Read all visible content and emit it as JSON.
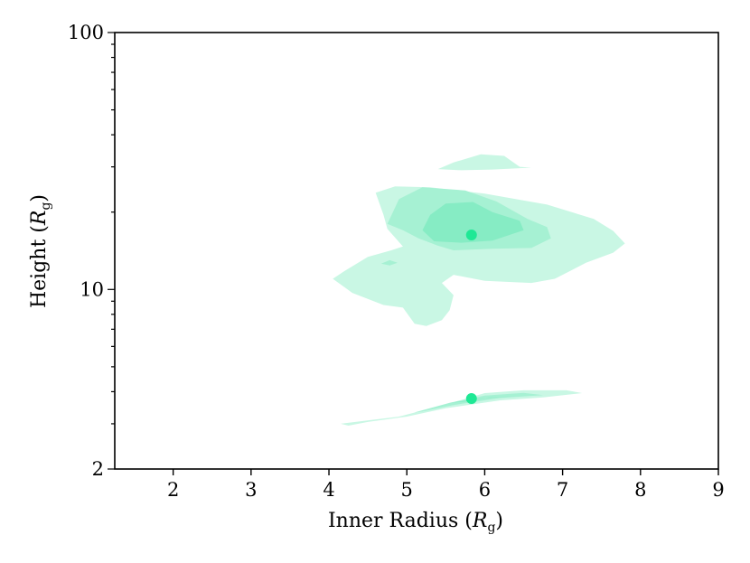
{
  "chart_data": {
    "type": "contour",
    "title": "",
    "xlabel": {
      "text": "Inner Radius (",
      "symbol": "R",
      "subscript": "g",
      "close": ")"
    },
    "ylabel": {
      "text": "Height (",
      "symbol": "R",
      "subscript": "g",
      "close": ")"
    },
    "xlim": [
      1.25,
      9.0
    ],
    "ylim": [
      2,
      100
    ],
    "yscale": "log",
    "x_ticks": [
      2,
      3,
      4,
      5,
      6,
      7,
      8,
      9
    ],
    "x_tick_labels": [
      "2",
      "3",
      "4",
      "5",
      "6",
      "7",
      "8",
      "9"
    ],
    "y_ticks": [
      2,
      10,
      100
    ],
    "y_tick_labels": [
      "2",
      "10",
      "100"
    ],
    "grid": false,
    "legend": "none",
    "colors": {
      "level_1": "#c9f7e4",
      "level_2": "#a6f1d3",
      "level_3": "#86ecc4",
      "marker": "#1fe895"
    },
    "contours": [
      {
        "name": "upper-mode",
        "levels": [
          {
            "level": 1,
            "polygons": [
              [
                [
                  4.2,
                  11.8
                ],
                [
                  4.5,
                  13.4
                ],
                [
                  4.8,
                  14.2
                ],
                [
                  4.95,
                  14.7
                ],
                [
                  4.75,
                  17.2
                ],
                [
                  4.7,
                  19.5
                ],
                [
                  4.6,
                  23.8
                ],
                [
                  4.85,
                  25.2
                ],
                [
                  5.3,
                  25.0
                ],
                [
                  6.0,
                  23.6
                ],
                [
                  6.8,
                  21.4
                ],
                [
                  7.4,
                  18.8
                ],
                [
                  7.65,
                  16.9
                ],
                [
                  7.8,
                  15.1
                ],
                [
                  7.65,
                  13.9
                ],
                [
                  7.3,
                  12.7
                ],
                [
                  6.9,
                  11.0
                ],
                [
                  6.6,
                  10.6
                ],
                [
                  6.0,
                  10.8
                ],
                [
                  5.6,
                  11.4
                ],
                [
                  5.45,
                  10.6
                ],
                [
                  5.6,
                  9.5
                ],
                [
                  5.55,
                  8.3
                ],
                [
                  5.45,
                  7.6
                ],
                [
                  5.25,
                  7.2
                ],
                [
                  5.1,
                  7.35
                ],
                [
                  4.95,
                  8.5
                ],
                [
                  4.7,
                  8.7
                ],
                [
                  4.3,
                  9.7
                ],
                [
                  4.05,
                  11.0
                ]
              ],
              [
                [
                  5.4,
                  29.4
                ],
                [
                  5.6,
                  31.2
                ],
                [
                  5.95,
                  33.6
                ],
                [
                  6.25,
                  33.1
                ],
                [
                  6.45,
                  30.0
                ],
                [
                  6.6,
                  29.8
                ],
                [
                  6.1,
                  29.3
                ],
                [
                  5.7,
                  29.1
                ]
              ]
            ]
          },
          {
            "level": 2,
            "polygons": [
              [
                [
                  4.75,
                  18.0
                ],
                [
                  4.9,
                  22.5
                ],
                [
                  5.2,
                  25.0
                ],
                [
                  5.75,
                  24.3
                ],
                [
                  6.15,
                  22.0
                ],
                [
                  6.55,
                  18.8
                ],
                [
                  6.8,
                  17.5
                ],
                [
                  6.85,
                  15.8
                ],
                [
                  6.6,
                  14.5
                ],
                [
                  6.1,
                  14.4
                ],
                [
                  5.6,
                  14.2
                ],
                [
                  5.4,
                  14.8
                ],
                [
                  5.15,
                  15.8
                ],
                [
                  4.95,
                  17.0
                ]
              ],
              [
                [
                  4.67,
                  12.6
                ],
                [
                  4.78,
                  13.0
                ],
                [
                  4.88,
                  12.7
                ],
                [
                  4.78,
                  12.4
                ]
              ]
            ]
          },
          {
            "level": 3,
            "polygons": [
              [
                [
                  5.2,
                  17.0
                ],
                [
                  5.3,
                  19.5
                ],
                [
                  5.5,
                  21.6
                ],
                [
                  5.85,
                  21.9
                ],
                [
                  6.1,
                  20.0
                ],
                [
                  6.45,
                  18.5
                ],
                [
                  6.5,
                  17.0
                ],
                [
                  6.1,
                  15.5
                ],
                [
                  5.7,
                  15.2
                ],
                [
                  5.35,
                  15.4
                ]
              ]
            ]
          }
        ]
      },
      {
        "name": "lower-mode",
        "levels": [
          {
            "level": 1,
            "polygons": [
              [
                [
                  4.15,
                  3.0
                ],
                [
                  4.9,
                  3.2
                ],
                [
                  5.55,
                  3.6
                ],
                [
                  6.0,
                  3.95
                ],
                [
                  6.5,
                  4.05
                ],
                [
                  7.05,
                  4.05
                ],
                [
                  7.25,
                  3.95
                ],
                [
                  6.75,
                  3.8
                ],
                [
                  6.2,
                  3.7
                ],
                [
                  5.5,
                  3.45
                ],
                [
                  5.0,
                  3.2
                ],
                [
                  4.5,
                  3.05
                ],
                [
                  4.25,
                  2.95
                ]
              ]
            ]
          },
          {
            "level": 2,
            "polygons": [
              [
                [
                  5.1,
                  3.32
                ],
                [
                  5.55,
                  3.62
                ],
                [
                  6.0,
                  3.86
                ],
                [
                  6.5,
                  3.96
                ],
                [
                  6.75,
                  3.88
                ],
                [
                  6.2,
                  3.78
                ],
                [
                  5.6,
                  3.55
                ],
                [
                  5.2,
                  3.35
                ]
              ]
            ]
          },
          {
            "level": 3,
            "polygons": [
              [
                [
                  5.55,
                  3.62
                ],
                [
                  6.0,
                  3.78
                ],
                [
                  6.4,
                  3.84
                ],
                [
                  6.05,
                  3.8
                ],
                [
                  5.75,
                  3.66
                ]
              ]
            ]
          }
        ]
      }
    ],
    "markers": [
      {
        "x": 5.83,
        "y": 16.3
      },
      {
        "x": 5.83,
        "y": 3.76
      }
    ]
  }
}
